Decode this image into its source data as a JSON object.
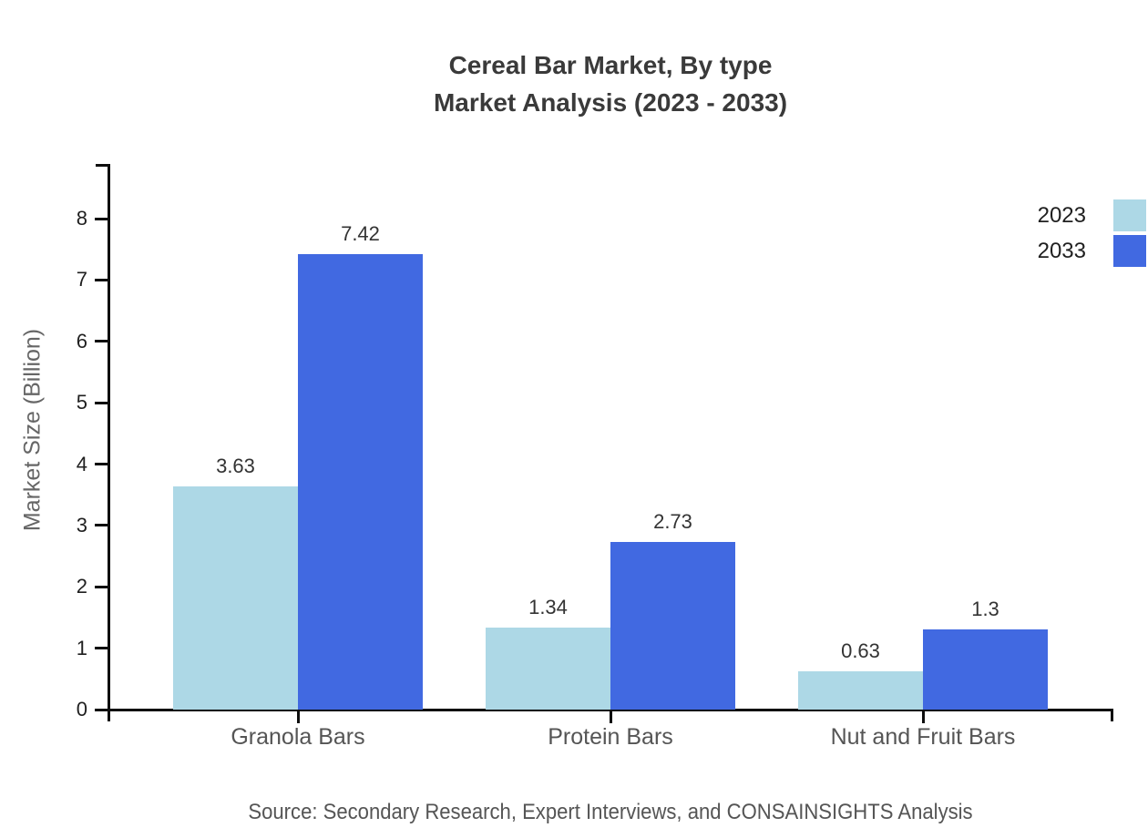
{
  "title": {
    "line1": "Cereal Bar Market, By type",
    "line2": "Market Analysis (2023 - 2033)"
  },
  "source": "Source: Secondary Research, Expert Interviews, and CONSAINSIGHTS Analysis",
  "chart_data": {
    "type": "bar",
    "categories": [
      "Granola Bars",
      "Protein Bars",
      "Nut and Fruit Bars"
    ],
    "series": [
      {
        "name": "2023",
        "color": "#ADD8E6",
        "values": [
          3.63,
          1.34,
          0.63
        ]
      },
      {
        "name": "2033",
        "color": "#4169E1",
        "values": [
          7.42,
          2.73,
          1.3
        ]
      }
    ],
    "value_labels": {
      "2023": [
        "3.63",
        "1.34",
        "0.63"
      ],
      "2033": [
        "7.42",
        "2.73",
        "1.3"
      ]
    },
    "xlabel": "",
    "ylabel": "Market Size (Billion)",
    "ylim": [
      0,
      8
    ],
    "yticks": [
      0,
      1,
      2,
      3,
      4,
      5,
      6,
      7,
      8
    ],
    "grid": false,
    "legend_position": "top-right"
  },
  "colors": {
    "bar_2023": "#ADD8E6",
    "bar_2033": "#4169E1",
    "axis": "#0e0e0e",
    "title_text": "#3a3a3a",
    "category_text": "#555555",
    "value_text": "#333333",
    "source_text": "#555555"
  }
}
